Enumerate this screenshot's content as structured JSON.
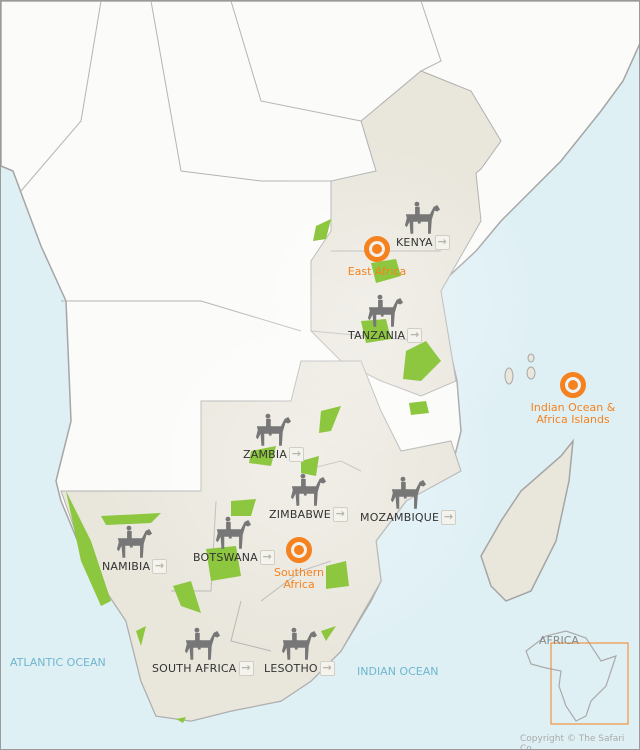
{
  "colors": {
    "sea": "#dff0f5",
    "land_other": "#fbfbf9",
    "land_highlight": "#e9e6dc",
    "parks": "#8dc63f",
    "accent": "#f5821f",
    "ocean_label": "#6fb6cf",
    "icon": "#777777"
  },
  "countries": [
    {
      "id": "kenya",
      "label": "KENYA",
      "icon": "horse-rider-icon",
      "arrow": "→"
    },
    {
      "id": "tanzania",
      "label": "TANZANIA",
      "icon": "horse-rider-icon",
      "arrow": "→"
    },
    {
      "id": "zambia",
      "label": "ZAMBIA",
      "icon": "horse-rider-icon",
      "arrow": "→"
    },
    {
      "id": "zimbabwe",
      "label": "ZIMBABWE",
      "icon": "horse-rider-icon",
      "arrow": "→"
    },
    {
      "id": "mozambique",
      "label": "MOZAMBIQUE",
      "icon": "horse-rider-icon",
      "arrow": "→"
    },
    {
      "id": "botswana",
      "label": "BOTSWANA",
      "icon": "horse-rider-icon",
      "arrow": "→"
    },
    {
      "id": "namibia",
      "label": "NAMIBIA",
      "icon": "horse-rider-icon",
      "arrow": "→"
    },
    {
      "id": "south-africa",
      "label": "SOUTH AFRICA",
      "icon": "horse-rider-icon",
      "arrow": "→"
    },
    {
      "id": "lesotho",
      "label": "LESOTHO",
      "icon": "horse-rider-icon",
      "arrow": "→"
    }
  ],
  "regions": [
    {
      "id": "east-africa",
      "line1": "East Africa",
      "line2": ""
    },
    {
      "id": "southern-africa",
      "line1": "Southern",
      "line2": "Africa"
    },
    {
      "id": "indian-ocean",
      "line1": "Indian Ocean &",
      "line2": "Africa Islands"
    }
  ],
  "oceans": {
    "atlantic": "ATLANTIC OCEAN",
    "indian": "INDIAN OCEAN"
  },
  "inset": {
    "label": "AFRICA"
  },
  "copyright": "Copyright © The Safari Co."
}
